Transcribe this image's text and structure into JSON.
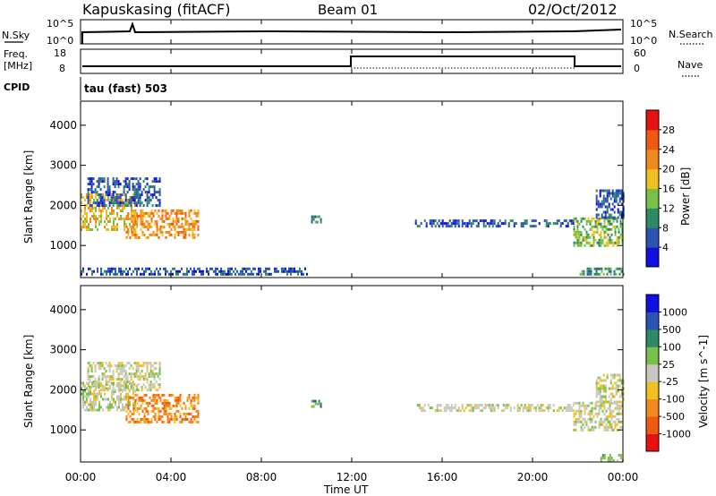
{
  "header": {
    "station": "Kapuskasing (fitACF)",
    "beam": "Beam 01",
    "date": "02/Oct/2012"
  },
  "noise_panel": {
    "left_label": "N.Sky",
    "left_ticks": [
      "10^5",
      "10^0"
    ],
    "right_label": "N.Search",
    "right_ticks": [
      "10^5",
      "10^0"
    ]
  },
  "freq_panel": {
    "left_label_line1": "Freq.",
    "left_label_line2": "[MHz]",
    "left_ticks": [
      "18",
      "8"
    ],
    "right_label": "Nave",
    "right_ticks": [
      "60",
      "0"
    ],
    "cpid_label": "CPID",
    "cpid_value": "tau (fast) 503"
  },
  "time_axis": {
    "label": "Time UT",
    "ticks": [
      "00:00",
      "04:00",
      "08:00",
      "12:00",
      "16:00",
      "20:00",
      "00:00"
    ]
  },
  "colors": {
    "power_scale": [
      "#1010e0",
      "#2a54b0",
      "#2e8a64",
      "#78c048",
      "#f0c020",
      "#f08a1c",
      "#f05a10",
      "#e81010"
    ],
    "velocity_scale": [
      "#e81010",
      "#f05a10",
      "#f08a1c",
      "#f0c020",
      "#c8c8c0",
      "#78c048",
      "#2e8a64",
      "#2a54b0",
      "#1010e0"
    ]
  },
  "chart_data": [
    {
      "type": "heatmap",
      "panel": "power",
      "ylabel": "Slant Range [km]",
      "xlabel": "Time UT",
      "yticks": [
        "1000",
        "2000",
        "3000",
        "4000"
      ],
      "ylim": [
        200,
        4600
      ],
      "xlim": [
        0,
        24
      ],
      "colorbar_label": "Power [dB]",
      "colorbar_ticks": [
        "4",
        "8",
        "12",
        "16",
        "20",
        "24",
        "28"
      ],
      "regions": [
        {
          "t0": 0.0,
          "t1": 2.5,
          "r0": 1400,
          "r1": 2300,
          "level": 4
        },
        {
          "t0": 0.3,
          "t1": 3.5,
          "r0": 2000,
          "r1": 2700,
          "level": 1
        },
        {
          "t0": 2.0,
          "t1": 5.2,
          "r0": 1200,
          "r1": 1900,
          "level": 5
        },
        {
          "t0": 10.2,
          "t1": 10.6,
          "r0": 1550,
          "r1": 1750,
          "level": 2
        },
        {
          "t0": 14.8,
          "t1": 21.8,
          "r0": 1500,
          "r1": 1650,
          "level": 1
        },
        {
          "t0": 21.8,
          "t1": 24.0,
          "r0": 1000,
          "r1": 1700,
          "level": 3
        },
        {
          "t0": 22.8,
          "t1": 24.0,
          "r0": 1700,
          "r1": 2400,
          "level": 1
        },
        {
          "t0": 0.0,
          "t1": 10.0,
          "r0": 250,
          "r1": 450,
          "level": 1
        },
        {
          "t0": 22.0,
          "t1": 24.0,
          "r0": 250,
          "r1": 450,
          "level": 2
        }
      ]
    },
    {
      "type": "heatmap",
      "panel": "velocity",
      "ylabel": "Slant Range [km]",
      "xlabel": "Time UT",
      "yticks": [
        "1000",
        "2000",
        "3000",
        "4000"
      ],
      "ylim": [
        200,
        4600
      ],
      "xlim": [
        0,
        24
      ],
      "colorbar_label": "Velocity [m s^-1]",
      "colorbar_ticks": [
        "1000",
        "500",
        "100",
        "25",
        "-25",
        "-100",
        "-500",
        "-1000"
      ],
      "regions": [
        {
          "t0": 0.0,
          "t1": 2.5,
          "r0": 1500,
          "r1": 2200,
          "level": 4
        },
        {
          "t0": 0.3,
          "t1": 3.5,
          "r0": 2000,
          "r1": 2700,
          "level": 4
        },
        {
          "t0": 2.0,
          "t1": 5.2,
          "r0": 1200,
          "r1": 1900,
          "level": 2
        },
        {
          "t0": 10.2,
          "t1": 10.6,
          "r0": 1550,
          "r1": 1750,
          "level": 6
        },
        {
          "t0": 14.8,
          "t1": 21.8,
          "r0": 1500,
          "r1": 1650,
          "level": 4
        },
        {
          "t0": 21.8,
          "t1": 24.0,
          "r0": 1000,
          "r1": 1700,
          "level": 4
        },
        {
          "t0": 22.8,
          "t1": 24.0,
          "r0": 1700,
          "r1": 2400,
          "level": 4
        },
        {
          "t0": 23.0,
          "t1": 24.0,
          "r0": 250,
          "r1": 400,
          "level": 5
        }
      ]
    }
  ]
}
